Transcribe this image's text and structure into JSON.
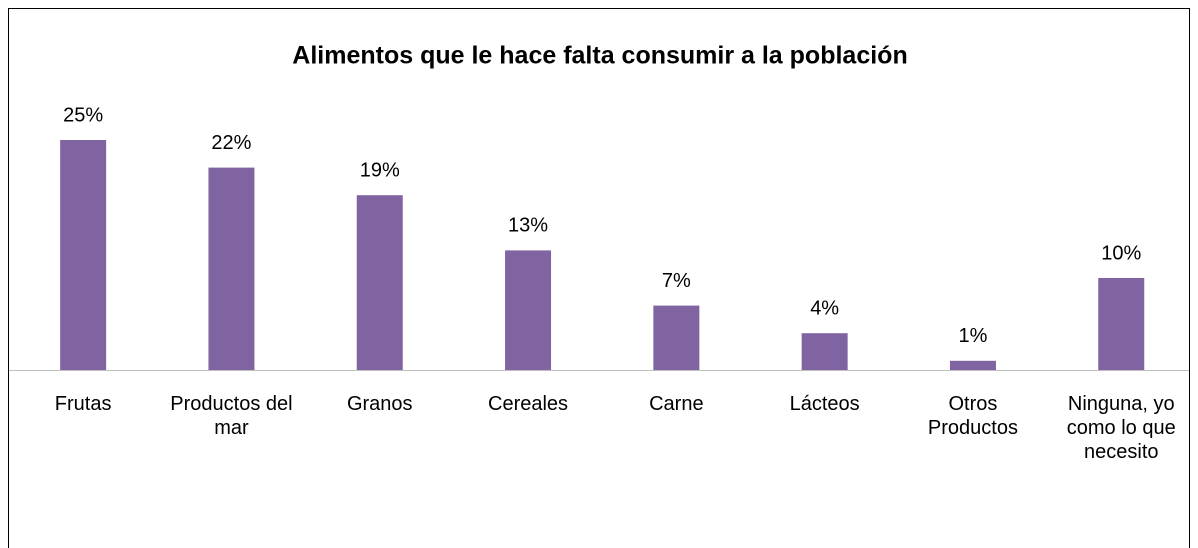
{
  "chart_data": {
    "type": "bar",
    "title": "Alimentos que le hace falta consumir a la población",
    "categories": [
      "Frutas",
      "Productos del mar",
      "Granos",
      "Cereales",
      "Carne",
      "Lácteos",
      "Otros Productos",
      "Ninguna, yo como lo que necesito"
    ],
    "values": [
      25,
      22,
      19,
      13,
      7,
      4,
      1,
      10
    ],
    "value_labels": [
      "25%",
      "22%",
      "19%",
      "13%",
      "7%",
      "4%",
      "1%",
      "10%"
    ],
    "color": "#8064a2"
  }
}
